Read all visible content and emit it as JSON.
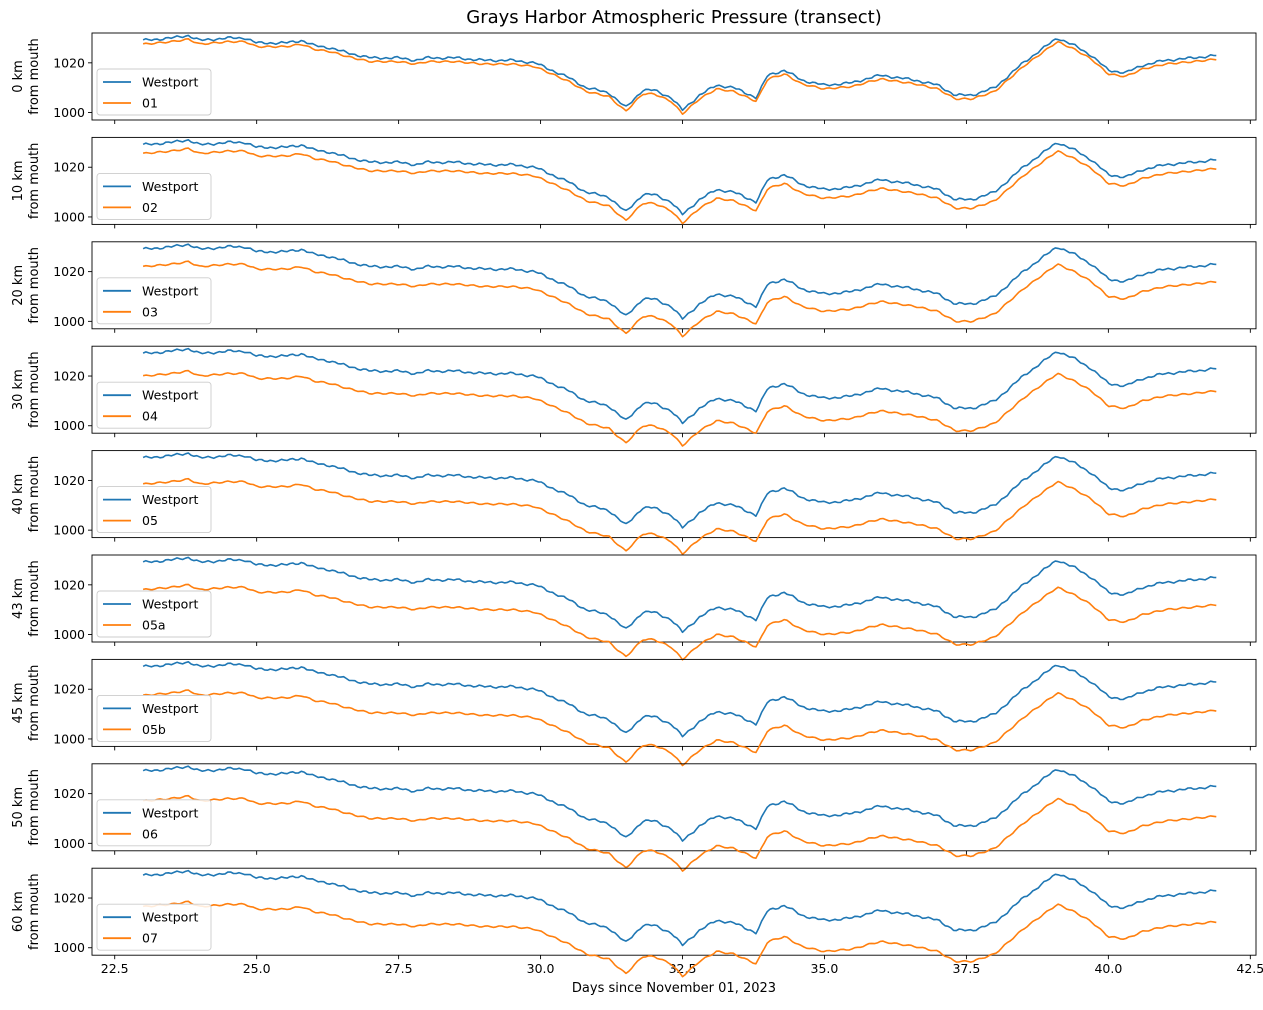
{
  "chart_data": {
    "type": "line",
    "title": "Grays Harbor Atmospheric Pressure (transect)",
    "xlabel": "Days since November 01, 2023",
    "xlim": [
      22.1,
      42.6
    ],
    "x_ticks": [
      "22.5",
      "25.0",
      "27.5",
      "30.0",
      "32.5",
      "35.0",
      "37.5",
      "40.0",
      "42.5"
    ],
    "x_tick_values": [
      22.5,
      25.0,
      27.5,
      30.0,
      32.5,
      35.0,
      37.5,
      40.0,
      42.5
    ],
    "ylim": [
      997,
      1032
    ],
    "y_ticks": [
      "1000",
      "1020"
    ],
    "y_tick_values": [
      1000,
      1020
    ],
    "colors": {
      "westport": "#1f77b4",
      "station": "#ff7f0e",
      "axis": "#000000"
    },
    "reference_series": {
      "name": "Westport",
      "x": [
        23.0,
        23.5,
        23.8,
        24.0,
        24.5,
        24.8,
        25.0,
        25.5,
        25.8,
        26.0,
        26.3,
        26.6,
        27.0,
        27.5,
        27.8,
        28.0,
        28.5,
        29.0,
        29.5,
        29.9,
        30.2,
        30.5,
        30.8,
        31.2,
        31.5,
        31.8,
        32.0,
        32.3,
        32.5,
        32.8,
        33.1,
        33.4,
        33.6,
        33.8,
        34.0,
        34.3,
        34.6,
        35.0,
        35.5,
        35.8,
        36.0,
        36.3,
        36.6,
        37.0,
        37.3,
        37.6,
        38.0,
        38.5,
        38.8,
        39.1,
        39.4,
        39.7,
        40.0,
        40.3,
        40.6,
        41.0,
        41.5,
        41.9
      ],
      "y": [
        1029,
        1030,
        1031,
        1029,
        1030,
        1030,
        1028,
        1028,
        1029,
        1027,
        1026,
        1024,
        1022,
        1022,
        1021,
        1022,
        1022,
        1021,
        1021,
        1020,
        1017,
        1014,
        1010,
        1008,
        1002,
        1009,
        1009,
        1006,
        1001,
        1007,
        1011,
        1010,
        1008,
        1006,
        1015,
        1017,
        1013,
        1011,
        1012,
        1014,
        1015,
        1014,
        1013,
        1011,
        1007,
        1007,
        1010,
        1020,
        1025,
        1030,
        1027,
        1023,
        1017,
        1016,
        1019,
        1021,
        1022,
        1023
      ]
    },
    "panels": [
      {
        "ylabel_1": "0 km",
        "ylabel_2": "from mouth",
        "station": "01",
        "offset": 1.5
      },
      {
        "ylabel_1": "10 km",
        "ylabel_2": "from mouth",
        "station": "02",
        "offset": 3.5
      },
      {
        "ylabel_1": "20 km",
        "ylabel_2": "from mouth",
        "station": "03",
        "offset": 7
      },
      {
        "ylabel_1": "30 km",
        "ylabel_2": "from mouth",
        "station": "04",
        "offset": 9
      },
      {
        "ylabel_1": "40 km",
        "ylabel_2": "from mouth",
        "station": "05",
        "offset": 10.5
      },
      {
        "ylabel_1": "43 km",
        "ylabel_2": "from mouth",
        "station": "05a",
        "offset": 11
      },
      {
        "ylabel_1": "45 km",
        "ylabel_2": "from mouth",
        "station": "05b",
        "offset": 11.5
      },
      {
        "ylabel_1": "50 km",
        "ylabel_2": "from mouth",
        "station": "06",
        "offset": 12
      },
      {
        "ylabel_1": "60 km",
        "ylabel_2": "from mouth",
        "station": "07",
        "offset": 12.5
      }
    ]
  }
}
